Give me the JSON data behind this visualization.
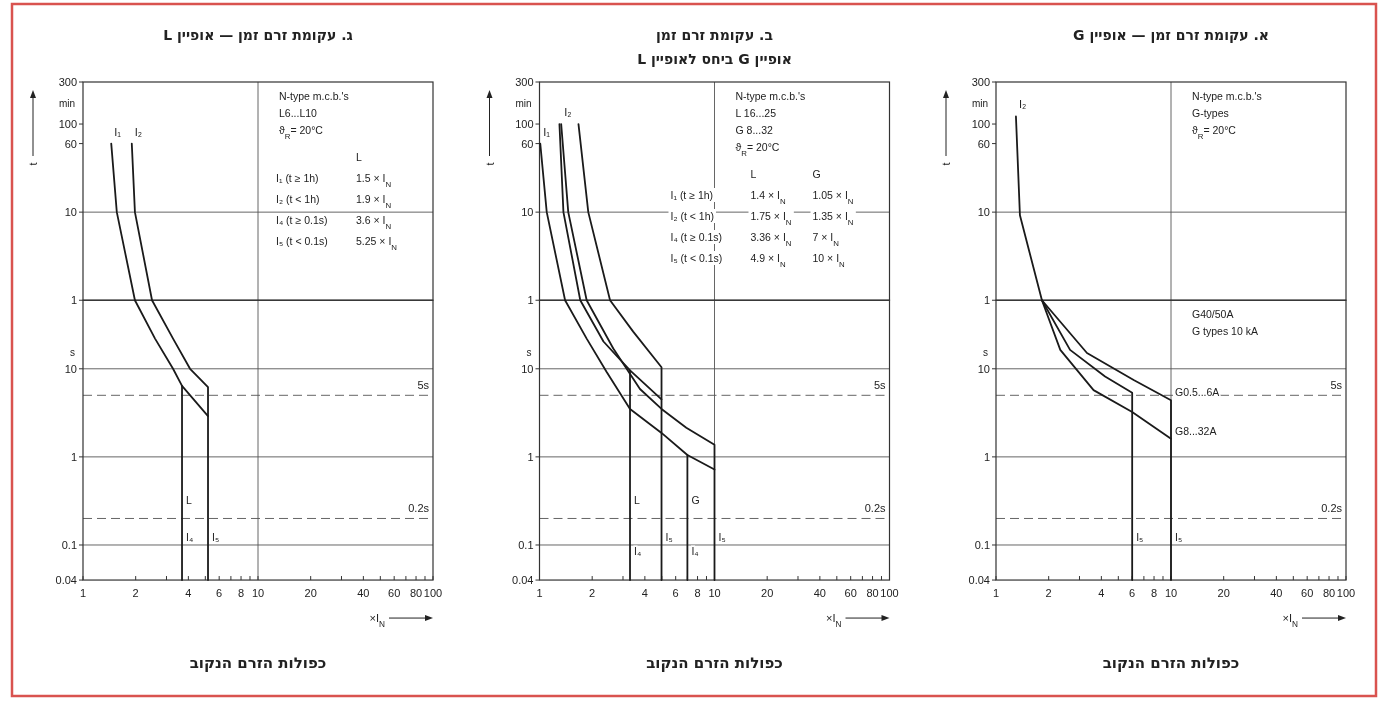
{
  "chart_data": [
    {
      "type": "line",
      "title": "א. עקומת זרם זמן — אופיין G",
      "ylabel": "min",
      "log": "xy",
      "line_style": "solid",
      "tick_labels": "y",
      "xlim": [
        1,
        100
      ],
      "ylim": [
        1,
        300
      ],
      "yticks": [
        300,
        100,
        60,
        10,
        1
      ],
      "series": [
        {
          "name": "I₂",
          "color": "#1a1a1a",
          "x": [
            1.3,
            1.37,
            1.83
          ],
          "values": [
            122,
            9.2,
            1
          ]
        }
      ],
      "ref_lines": [
        {
          "axis": "y",
          "value": 10,
          "label": null
        },
        {
          "axis": "x",
          "value": 10,
          "label": null
        }
      ],
      "annotations": [
        "N-type m.c.b.'s",
        "G-types",
        "ϑ$_{R}$= 20°C",
        "t"
      ]
    },
    {
      "type": "line",
      "xlabel": "×I$_{N}$",
      "ylabel": "s",
      "log": "xy",
      "line_style": "solid",
      "xlim": [
        1,
        100
      ],
      "ylim": [
        0.04,
        60
      ],
      "xticks": [
        1,
        2,
        {
          "value": 3,
          "label": null
        },
        4,
        {
          "value": 5,
          "label": null
        },
        6,
        {
          "value": 7,
          "label": null
        },
        8,
        {
          "value": 9,
          "label": null
        },
        10,
        20,
        {
          "value": 30,
          "label": null
        },
        40,
        {
          "value": 50,
          "label": null
        },
        60,
        {
          "value": 70,
          "label": null
        },
        80,
        {
          "value": 90,
          "label": null
        },
        100
      ],
      "yticks": [
        10,
        1,
        0.1,
        0.04
      ],
      "series": [
        {
          "color": "#1a1a1a",
          "x": [
            1.83,
            3.31,
            6.12,
            10,
            10
          ],
          "values": [
            60,
            15.1,
            7.45,
            4.4,
            0.04
          ]
        },
        {
          "color": "#1a1a1a",
          "x": [
            1.83,
            2.65,
            4.2,
            6,
            6
          ],
          "values": [
            60,
            16.4,
            8.16,
            5.35,
            0.04
          ]
        },
        {
          "color": "#1a1a1a",
          "x": [
            1.83,
            2.33,
            3.61,
            6,
            10
          ],
          "values": [
            60,
            16.4,
            5.73,
            3.24,
            1.61
          ]
        }
      ],
      "ref_lines": [
        {
          "axis": "y",
          "value": 5,
          "label": "5s",
          "line_style": "dashed"
        },
        {
          "axis": "y",
          "value": 0.2,
          "label": "0.2s",
          "line_style": "dashed"
        },
        {
          "axis": "y",
          "value": 10,
          "label": null
        },
        {
          "axis": "y",
          "value": 1,
          "label": null
        },
        {
          "axis": "y",
          "value": 0.1,
          "label": null
        },
        {
          "axis": "x",
          "value": 10,
          "label": null
        }
      ],
      "annotations": [
        "G40/50A",
        "G types 10 kA",
        {
          "text": "I₅",
          "x": 6,
          "y": 0.1
        },
        {
          "text": "I₅",
          "x": 10,
          "y": 0.1
        },
        {
          "text": "G0.5...6A",
          "x": 10,
          "y": 4.4
        },
        {
          "text": "G8...32A",
          "x": 10,
          "y": 1.61
        },
        "כפולות הזרם הנקוב"
      ]
    },
    {
      "type": "line",
      "title": "ב. עקומת זרם זמן",
      "subtitle": "אופיין G ביחס לאופיין L",
      "ylabel": "min",
      "log": "xy",
      "line_style": "solid",
      "tick_labels": "y",
      "xlim": [
        1,
        100
      ],
      "ylim": [
        1,
        300
      ],
      "yticks": [
        300,
        100,
        60,
        10,
        1
      ],
      "series": [
        {
          "name": "I₁",
          "color": "#1a1a1a",
          "x": [
            1.01,
            1.1,
            1.4
          ],
          "values": [
            60,
            10,
            1
          ]
        },
        {
          "color": "#1a1a1a",
          "x": [
            1.3,
            1.37,
            1.71
          ],
          "values": [
            100,
            10,
            1
          ]
        },
        {
          "name": "I₂",
          "color": "#1a1a1a",
          "x": [
            1.33,
            1.46,
            1.86
          ],
          "values": [
            100,
            10,
            1
          ]
        },
        {
          "color": "#1a1a1a",
          "x": [
            1.67,
            1.9,
            2.53
          ],
          "values": [
            100,
            10,
            1
          ]
        }
      ],
      "ref_lines": [
        {
          "axis": "y",
          "value": 10,
          "label": null
        },
        {
          "axis": "x",
          "value": 10,
          "label": null
        }
      ],
      "annotations": [
        "N-type m.c.b.'s",
        "L 16...25",
        "G 8...32",
        "ϑ$_{R}$= 20°C",
        "  L  G",
        "I₁ (t ≥ 1h)  1.4 × I$_{N}$  1.05 × I$_{N}$",
        "I₂ (t < 1h)  1.75 × I$_{N}$  1.35 × I$_{N}$",
        "I₄ (t ≥ 0.1s)  3.36 × I$_{N}$  7 × I$_{N}$",
        "I₅ (t < 0.1s)  4.9 × I$_{N}$  10 × I$_{N}$",
        "t"
      ]
    },
    {
      "type": "line",
      "xlabel": "×I$_{N}$",
      "ylabel": "s",
      "log": "xy",
      "line_style": "solid",
      "xlim": [
        1,
        100
      ],
      "ylim": [
        0.04,
        60
      ],
      "xticks": [
        1,
        2,
        {
          "value": 3,
          "label": null
        },
        4,
        {
          "value": 5,
          "label": null
        },
        6,
        {
          "value": 7,
          "label": null
        },
        8,
        {
          "value": 9,
          "label": null
        },
        10,
        20,
        {
          "value": 30,
          "label": null
        },
        40,
        {
          "value": 50,
          "label": null
        },
        60,
        {
          "value": 70,
          "label": null
        },
        80,
        {
          "value": 90,
          "label": null
        },
        100
      ],
      "yticks": [
        10,
        1,
        0.1,
        0.04
      ],
      "series": [
        {
          "color": "#1a1a1a",
          "x": [
            1.4,
            1.86,
            2.42,
            3.29,
            4.98,
            7,
            10
          ],
          "values": [
            60,
            22,
            9.2,
            3.5,
            1.87,
            1.05,
            0.72
          ]
        },
        {
          "color": "#1a1a1a",
          "x": [
            1.71,
            2.32,
            3.29,
            4.98
          ],
          "values": [
            60,
            20.4,
            9.6,
            4.5
          ]
        },
        {
          "color": "#1a1a1a",
          "x": [
            1.86,
            2.64,
            3.75,
            4.98,
            6.9,
            10,
            10
          ],
          "values": [
            60,
            17,
            5.9,
            3.5,
            2.14,
            1.37,
            0.04
          ]
        },
        {
          "color": "#1a1a1a",
          "x": [
            2.53,
            3.43,
            4.98,
            4.98
          ],
          "values": [
            60,
            26.4,
            10.4,
            0.04
          ]
        },
        {
          "color": "#1a1a1a",
          "x": [
            3.29,
            3.29
          ],
          "values": [
            9.6,
            0.04
          ]
        },
        {
          "color": "#1a1a1a",
          "x": [
            7,
            7
          ],
          "values": [
            1.05,
            0.04
          ]
        }
      ],
      "ref_lines": [
        {
          "axis": "y",
          "value": 5,
          "label": "5s",
          "line_style": "dashed"
        },
        {
          "axis": "y",
          "value": 0.2,
          "label": "0.2s",
          "line_style": "dashed"
        },
        {
          "axis": "y",
          "value": 10,
          "label": null
        },
        {
          "axis": "y",
          "value": 1,
          "label": null
        },
        {
          "axis": "y",
          "value": 0.1,
          "label": null
        },
        {
          "axis": "x",
          "value": 10,
          "label": null
        }
      ],
      "annotations": [
        {
          "text": "L",
          "x": 3.29,
          "y": 0.26
        },
        {
          "text": "G",
          "x": 7,
          "y": 0.26
        },
        {
          "text": "I₄",
          "x": 3.29,
          "y": 0.07
        },
        {
          "text": "I₅",
          "x": 4.98,
          "y": 0.1
        },
        {
          "text": "I₄",
          "x": 7,
          "y": 0.07
        },
        {
          "text": "I₅",
          "x": 10,
          "y": 0.1
        },
        "כפולות הזרם הנקוב"
      ]
    },
    {
      "type": "line",
      "title": "ג. עקומת זרם זמן — אופיין L",
      "ylabel": "min",
      "log": "xy",
      "line_style": "solid",
      "tick_labels": "y",
      "xlim": [
        1,
        100
      ],
      "ylim": [
        1,
        300
      ],
      "yticks": [
        300,
        100,
        60,
        10,
        1
      ],
      "series": [
        {
          "name": "I₁",
          "color": "#1a1a1a",
          "x": [
            1.45,
            1.56,
            1.98
          ],
          "values": [
            60,
            10,
            1
          ]
        },
        {
          "name": "I₂",
          "color": "#1a1a1a",
          "x": [
            1.9,
            1.98,
            2.48
          ],
          "values": [
            60,
            10,
            1
          ]
        }
      ],
      "ref_lines": [
        {
          "axis": "y",
          "value": 10,
          "label": null
        },
        {
          "axis": "x",
          "value": 10,
          "label": null
        }
      ],
      "annotations": [
        "N-type m.c.b.'s",
        "L6...L10",
        "ϑ$_{R}$= 20°C",
        "  L",
        "I₁ (t ≥ 1h)  1.5 × I$_{N}$",
        "I₂ (t < 1h)  1.9 × I$_{N}$",
        "I₄ (t ≥ 0.1s)  3.6 × I$_{N}$",
        "I₅ (t < 0.1s)  5.25 × I$_{N}$",
        "t"
      ]
    },
    {
      "type": "line",
      "xlabel": "×I$_{N}$",
      "ylabel": "s",
      "log": "xy",
      "line_style": "solid",
      "xlim": [
        1,
        100
      ],
      "ylim": [
        0.04,
        60
      ],
      "xticks": [
        1,
        2,
        {
          "value": 3,
          "label": null
        },
        4,
        {
          "value": 5,
          "label": null
        },
        6,
        {
          "value": 7,
          "label": null
        },
        8,
        {
          "value": 9,
          "label": null
        },
        10,
        20,
        {
          "value": 30,
          "label": null
        },
        40,
        {
          "value": 50,
          "label": null
        },
        60,
        {
          "value": 70,
          "label": null
        },
        80,
        {
          "value": 90,
          "label": null
        },
        100
      ],
      "yticks": [
        10,
        1,
        0.1,
        0.04
      ],
      "series": [
        {
          "color": "#1a1a1a",
          "x": [
            1.98,
            2.58,
            3.27,
            3.68,
            5.18
          ],
          "values": [
            60,
            22,
            10,
            6.4,
            2.9
          ]
        },
        {
          "color": "#1a1a1a",
          "x": [
            2.48,
            3.27,
            4.09,
            5.18,
            5.18
          ],
          "values": [
            60,
            22,
            10,
            6.2,
            0.04
          ]
        },
        {
          "color": "#1a1a1a",
          "x": [
            3.68,
            3.68
          ],
          "values": [
            6.4,
            0.04
          ]
        }
      ],
      "ref_lines": [
        {
          "axis": "y",
          "value": 5,
          "label": "5s",
          "line_style": "dashed"
        },
        {
          "axis": "y",
          "value": 0.2,
          "label": "0.2s",
          "line_style": "dashed"
        },
        {
          "axis": "y",
          "value": 10,
          "label": null
        },
        {
          "axis": "y",
          "value": 1,
          "label": null
        },
        {
          "axis": "y",
          "value": 0.1,
          "label": null
        },
        {
          "axis": "x",
          "value": 10,
          "label": null
        }
      ],
      "annotations": [
        {
          "text": "I₄",
          "x": 3.68,
          "y": 0.1
        },
        {
          "text": "I₅",
          "x": 5.18,
          "y": 0.1
        },
        {
          "text": "L",
          "x": 3.68,
          "y": 0.26
        },
        "כפולות הזרם הנקוב"
      ]
    }
  ]
}
